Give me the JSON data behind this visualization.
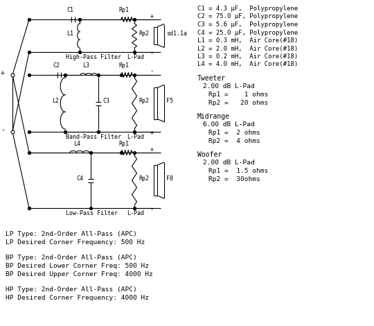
{
  "bg_color": "#ffffff",
  "right_text": [
    "C1 = 4.3 μF,  Polypropylene",
    "C2 = 75.0 μF, Polypropylene",
    "C3 = 5.6 μF,  Polypropylene",
    "C4 = 25.0 μF, Polypropylene",
    "L1 = 0.3 mH,  Air Core(#18)",
    "L2 = 2.0 mH,  Air Core(#18)",
    "L3 = 0.2 mH,  Air Core(#18)",
    "L4 = 4.0 mH,  Air Core(#18)"
  ],
  "tweeter_text": [
    "Tweeter",
    "2.00 dB L-Pad",
    "Rp1 =    1 ohms",
    "Rp2 =   20 ohms"
  ],
  "midrange_text": [
    "Midrange",
    "6.00 dB L-Pad",
    "Rp1 =  2 ohms",
    "Rp2 =  4 ohms"
  ],
  "woofer_text": [
    "Woofer",
    "2.00 dB L-Pad",
    "Rp1 =  1.5 ohms",
    "Rp2 =  30ohms"
  ],
  "footer_lines": [
    "LP Type: 2nd-Order All-Pass (APC)",
    "LP Desired Corner Frequency: 500 Hz",
    "",
    "BP Type: 2nd-Order All-Pass (APC)",
    "BP Desired Lower Corner Freq: 500 Hz",
    "BP Desired Upper Corner Freq: 4000 Hz",
    "",
    "HP Type: 2nd-Order All-Pass (APC)",
    "HP Desired Corner Frequency: 4000 Hz"
  ]
}
